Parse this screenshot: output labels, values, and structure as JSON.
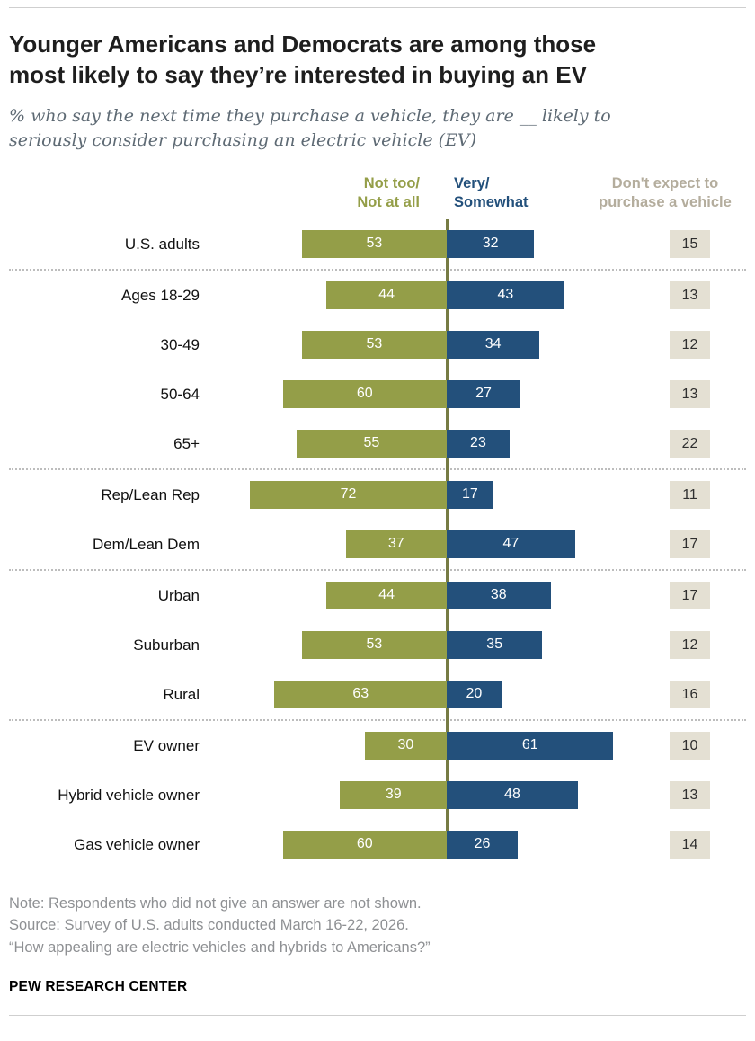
{
  "title": "Younger Americans and Democrats are among those most likely to say they’re interested in buying an EV",
  "subtitle": "% who say the next time they purchase a vehicle, they are __ likely to seriously consider purchasing an electric vehicle (EV)",
  "colors": {
    "olive": "#949e48",
    "blue": "#23507b",
    "box_bg": "#e4e0d3",
    "axis": "#767b44",
    "header_gray": "#b4ad9d"
  },
  "chart_data": {
    "type": "bar",
    "orientation": "horizontal-diverging",
    "legend_position": "top",
    "legend": [
      {
        "name": "Not too/Not at all",
        "lines": [
          "Not too/",
          "Not at all"
        ],
        "color": "#949e48"
      },
      {
        "name": "Very/Somewhat",
        "lines": [
          "Very/",
          "Somewhat"
        ],
        "color": "#23507b"
      },
      {
        "name": "Don't expect to purchase a vehicle",
        "lines": [
          "Don't expect to",
          "purchase a vehicle"
        ],
        "color": "#b4ad9d"
      }
    ],
    "categories": [
      "U.S. adults",
      "Ages 18-29",
      "30-49",
      "50-64",
      "65+",
      "Rep/Lean Rep",
      "Dem/Lean Dem",
      "Urban",
      "Suburban",
      "Rural",
      "EV owner",
      "Hybrid vehicle owner",
      "Gas vehicle owner"
    ],
    "series": [
      {
        "name": "Not too/Not at all",
        "values": [
          53,
          44,
          53,
          60,
          55,
          72,
          37,
          44,
          53,
          63,
          30,
          39,
          60
        ]
      },
      {
        "name": "Very/Somewhat",
        "values": [
          32,
          43,
          34,
          27,
          23,
          17,
          47,
          38,
          35,
          20,
          61,
          48,
          26
        ]
      },
      {
        "name": "Don't expect to purchase a vehicle",
        "values": [
          15,
          13,
          12,
          13,
          22,
          11,
          17,
          17,
          12,
          16,
          10,
          13,
          14
        ]
      }
    ],
    "group_breaks_after": [
      0,
      4,
      6,
      9
    ]
  },
  "notes": [
    "Note: Respondents who did not give an answer are not shown.",
    "Source: Survey of U.S. adults conducted March 16-22, 2026.",
    "“How appealing are electric vehicles and hybrids to Americans?”"
  ],
  "footer": "PEW RESEARCH CENTER"
}
